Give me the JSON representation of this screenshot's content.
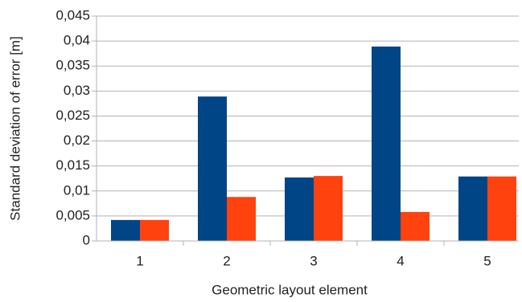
{
  "chart_data": {
    "type": "bar",
    "x_label": "Geometric layout element",
    "y_label": "Standard deviation of error [m]",
    "categories": [
      "1",
      "2",
      "3",
      "4",
      "5"
    ],
    "series": [
      {
        "color": "#004586",
        "values": [
          0.0042,
          0.0289,
          0.0127,
          0.0389,
          0.0129
        ]
      },
      {
        "color": "#ff420e",
        "values": [
          0.0042,
          0.0088,
          0.013,
          0.0058,
          0.0129
        ]
      }
    ],
    "ylim": [
      0,
      0.045
    ],
    "yticks": [
      0,
      {
        "value": 0.005,
        "label": "0,005"
      },
      {
        "value": 0.01,
        "label": "0,01"
      },
      {
        "value": 0.015,
        "label": "0,015"
      },
      {
        "value": 0.02,
        "label": "0,02"
      },
      {
        "value": 0.025,
        "label": "0,025"
      },
      {
        "value": 0.03,
        "label": "0,03"
      },
      {
        "value": 0.035,
        "label": "0,035"
      },
      {
        "value": 0.04,
        "label": "0,04"
      },
      {
        "value": 0.045,
        "label": "0,045"
      }
    ],
    "grid": true
  }
}
